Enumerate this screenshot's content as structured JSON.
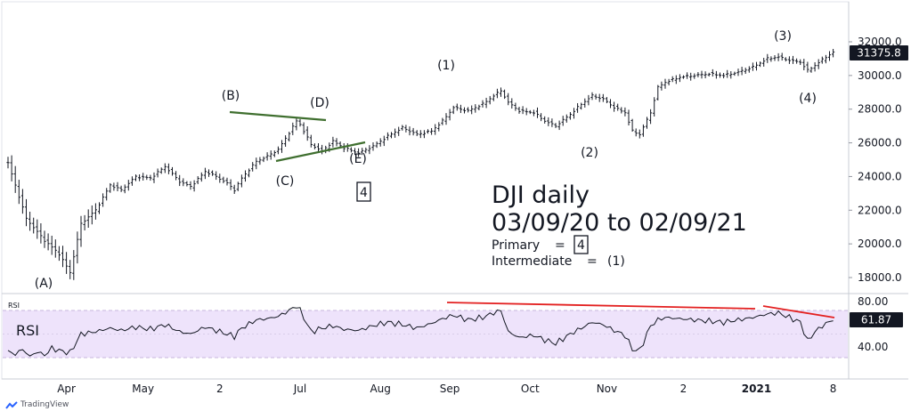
{
  "chart_data": {
    "type": "ohlc",
    "title": "DJI daily",
    "subtitle": "03/09/20 to 02/09/21",
    "last_price": "31375.8",
    "price_ticks": [
      "32000.0",
      "30000.0",
      "28000.0",
      "26000.0",
      "24000.0",
      "22000.0",
      "20000.0",
      "18000.0"
    ],
    "x_labels": [
      "Apr",
      "May",
      "2",
      "Jul",
      "Aug",
      "Sep",
      "Oct",
      "Nov",
      "2",
      "2021",
      "8"
    ],
    "wave_labels": [
      "(A)",
      "(B)",
      "(C)",
      "(D)",
      "(E)",
      "(1)",
      "(2)",
      "(3)",
      "(4)"
    ],
    "box_label": "4",
    "legend": {
      "primary_label": "Primary",
      "primary_eq": "=",
      "primary_value": "4",
      "intermediate_label": "Intermediate",
      "intermediate_eq": "=",
      "intermediate_value": "(1)"
    },
    "price_anchors": [
      [
        0,
        24800
      ],
      [
        5,
        21500
      ],
      [
        10,
        20200
      ],
      [
        14,
        19400
      ],
      [
        17,
        18300
      ],
      [
        20,
        21200
      ],
      [
        24,
        22000
      ],
      [
        28,
        23500
      ],
      [
        31,
        23200
      ],
      [
        35,
        24000
      ],
      [
        39,
        23900
      ],
      [
        43,
        24600
      ],
      [
        47,
        23700
      ],
      [
        50,
        23400
      ],
      [
        54,
        24300
      ],
      [
        57,
        24000
      ],
      [
        60,
        23600
      ],
      [
        62,
        23200
      ],
      [
        64,
        23900
      ],
      [
        68,
        24900
      ],
      [
        71,
        25200
      ],
      [
        74,
        25600
      ],
      [
        77,
        26600
      ],
      [
        79,
        27300
      ],
      [
        80,
        27100
      ],
      [
        83,
        25900
      ],
      [
        86,
        25500
      ],
      [
        89,
        26100
      ],
      [
        92,
        25700
      ],
      [
        96,
        25400
      ],
      [
        100,
        25800
      ],
      [
        104,
        26400
      ],
      [
        108,
        26900
      ],
      [
        112,
        26500
      ],
      [
        116,
        26700
      ],
      [
        119,
        27300
      ],
      [
        122,
        28100
      ],
      [
        126,
        27900
      ],
      [
        130,
        28300
      ],
      [
        133,
        28800
      ],
      [
        135,
        29100
      ],
      [
        137,
        28400
      ],
      [
        140,
        27900
      ],
      [
        144,
        27800
      ],
      [
        147,
        27300
      ],
      [
        150,
        27000
      ],
      [
        154,
        27700
      ],
      [
        157,
        28300
      ],
      [
        160,
        28800
      ],
      [
        163,
        28600
      ],
      [
        166,
        28100
      ],
      [
        169,
        27800
      ],
      [
        171,
        26700
      ],
      [
        173,
        26500
      ],
      [
        176,
        27800
      ],
      [
        178,
        29300
      ],
      [
        180,
        29600
      ],
      [
        184,
        29900
      ],
      [
        188,
        30000
      ],
      [
        192,
        30100
      ],
      [
        196,
        30000
      ],
      [
        200,
        30200
      ],
      [
        204,
        30500
      ],
      [
        208,
        31000
      ],
      [
        211,
        31100
      ],
      [
        214,
        30900
      ],
      [
        217,
        30800
      ],
      [
        219,
        30300
      ],
      [
        221,
        30600
      ],
      [
        224,
        31100
      ],
      [
        226,
        31375
      ]
    ],
    "rsi_anchors": [
      [
        0,
        35
      ],
      [
        2,
        33
      ],
      [
        4,
        37
      ],
      [
        6,
        31
      ],
      [
        8,
        35
      ],
      [
        10,
        32
      ],
      [
        12,
        38
      ],
      [
        14,
        36
      ],
      [
        17,
        34
      ],
      [
        20,
        50
      ],
      [
        24,
        52
      ],
      [
        28,
        55
      ],
      [
        31,
        53
      ],
      [
        35,
        56
      ],
      [
        39,
        54
      ],
      [
        43,
        58
      ],
      [
        47,
        52
      ],
      [
        50,
        50
      ],
      [
        54,
        56
      ],
      [
        57,
        53
      ],
      [
        60,
        50
      ],
      [
        62,
        48
      ],
      [
        64,
        55
      ],
      [
        68,
        62
      ],
      [
        71,
        63
      ],
      [
        74,
        65
      ],
      [
        77,
        70
      ],
      [
        79,
        74
      ],
      [
        80,
        70
      ],
      [
        83,
        52
      ],
      [
        86,
        55
      ],
      [
        89,
        57
      ],
      [
        92,
        54
      ],
      [
        96,
        53
      ],
      [
        100,
        57
      ],
      [
        104,
        60
      ],
      [
        108,
        58
      ],
      [
        112,
        55
      ],
      [
        116,
        59
      ],
      [
        119,
        63
      ],
      [
        122,
        66
      ],
      [
        126,
        62
      ],
      [
        130,
        64
      ],
      [
        133,
        68
      ],
      [
        135,
        70
      ],
      [
        137,
        52
      ],
      [
        140,
        47
      ],
      [
        144,
        49
      ],
      [
        147,
        45
      ],
      [
        150,
        42
      ],
      [
        154,
        50
      ],
      [
        157,
        55
      ],
      [
        160,
        60
      ],
      [
        163,
        58
      ],
      [
        166,
        53
      ],
      [
        169,
        49
      ],
      [
        171,
        37
      ],
      [
        173,
        36
      ],
      [
        176,
        57
      ],
      [
        178,
        62
      ],
      [
        180,
        64
      ],
      [
        184,
        63
      ],
      [
        188,
        62
      ],
      [
        192,
        61
      ],
      [
        196,
        60
      ],
      [
        200,
        62
      ],
      [
        204,
        64
      ],
      [
        208,
        67
      ],
      [
        211,
        68
      ],
      [
        214,
        64
      ],
      [
        217,
        60
      ],
      [
        219,
        44
      ],
      [
        221,
        52
      ],
      [
        224,
        59
      ],
      [
        226,
        61.87
      ]
    ],
    "rsi": {
      "label": "RSI",
      "title": "RSI",
      "ticks": [
        "80.00",
        "40.00"
      ],
      "value": "61.87",
      "band": [
        30,
        70
      ]
    },
    "colors": {
      "bars": "#131722",
      "green_lines": "#3f6f2f",
      "red_lines": "#e32020",
      "rsi_line": "#131722",
      "rsi_band": "#eee3fb",
      "rsi_band_lines": "#c7b4dd"
    }
  },
  "watermark": "TradingView"
}
